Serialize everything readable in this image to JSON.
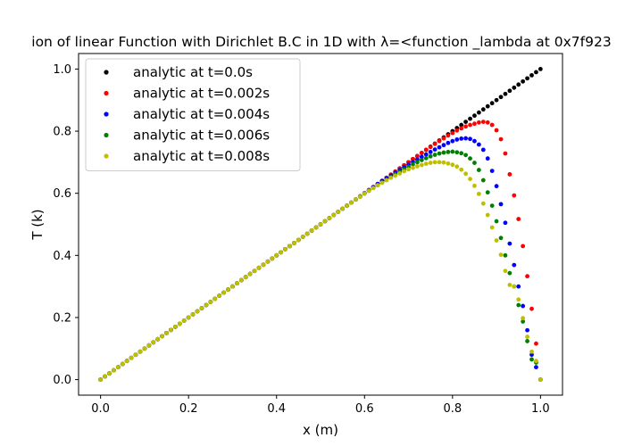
{
  "chart_data": {
    "type": "scatter",
    "title": "ion of linear Function with Dirichlet B.C in 1D with λ=<function _lambda at 0x7f923",
    "xlabel": "x (m)",
    "ylabel": "T (k)",
    "xlim": [
      -0.05,
      1.05
    ],
    "ylim": [
      -0.05,
      1.05
    ],
    "xticks": [
      "0.0",
      "0.2",
      "0.4",
      "0.6",
      "0.8",
      "1.0"
    ],
    "yticks": [
      "0.0",
      "0.2",
      "0.4",
      "0.6",
      "0.8",
      "1.0"
    ],
    "grid": false,
    "legend_position": "top-left",
    "series": [
      {
        "name": "analytic at t=0.0s",
        "color": "#000000",
        "x": [
          0.0,
          0.01,
          0.02,
          0.03,
          0.04,
          0.05,
          0.06,
          0.07,
          0.08,
          0.09,
          0.1,
          0.11,
          0.12,
          0.13,
          0.14,
          0.15,
          0.16,
          0.17,
          0.18,
          0.19,
          0.2,
          0.21,
          0.22,
          0.23,
          0.24,
          0.25,
          0.26,
          0.27,
          0.28,
          0.29,
          0.3,
          0.31,
          0.32,
          0.33,
          0.34,
          0.35,
          0.36,
          0.37,
          0.38,
          0.39,
          0.4,
          0.41,
          0.42,
          0.43,
          0.44,
          0.45,
          0.46,
          0.47,
          0.48,
          0.49,
          0.5,
          0.51,
          0.52,
          0.53,
          0.54,
          0.55,
          0.56,
          0.57,
          0.58,
          0.59,
          0.6,
          0.61,
          0.62,
          0.63,
          0.64,
          0.65,
          0.66,
          0.67,
          0.68,
          0.69,
          0.7,
          0.71,
          0.72,
          0.73,
          0.74,
          0.75,
          0.76,
          0.77,
          0.78,
          0.79,
          0.8,
          0.81,
          0.82,
          0.83,
          0.84,
          0.85,
          0.86,
          0.87,
          0.88,
          0.89,
          0.9,
          0.91,
          0.92,
          0.93,
          0.94,
          0.95,
          0.96,
          0.97,
          0.98,
          0.99,
          1.0
        ],
        "y": [
          0.0,
          0.01,
          0.02,
          0.03,
          0.04,
          0.05,
          0.06,
          0.07,
          0.08,
          0.09,
          0.1,
          0.11,
          0.12,
          0.13,
          0.14,
          0.15,
          0.16,
          0.17,
          0.18,
          0.19,
          0.2,
          0.21,
          0.22,
          0.23,
          0.24,
          0.25,
          0.26,
          0.27,
          0.28,
          0.29,
          0.3,
          0.31,
          0.32,
          0.33,
          0.34,
          0.35,
          0.36,
          0.37,
          0.38,
          0.39,
          0.4,
          0.41,
          0.42,
          0.43,
          0.44,
          0.45,
          0.46,
          0.47,
          0.48,
          0.49,
          0.5,
          0.51,
          0.52,
          0.53,
          0.54,
          0.55,
          0.56,
          0.57,
          0.58,
          0.59,
          0.6,
          0.61,
          0.62,
          0.63,
          0.64,
          0.65,
          0.66,
          0.67,
          0.68,
          0.69,
          0.7,
          0.71,
          0.72,
          0.73,
          0.74,
          0.75,
          0.76,
          0.77,
          0.78,
          0.79,
          0.8,
          0.81,
          0.82,
          0.83,
          0.84,
          0.85,
          0.86,
          0.87,
          0.88,
          0.89,
          0.9,
          0.91,
          0.92,
          0.93,
          0.94,
          0.95,
          0.96,
          0.97,
          0.98,
          0.99,
          1.0
        ]
      },
      {
        "name": "analytic at t=0.002s",
        "color": "#ff0000",
        "x": [
          0.0,
          0.01,
          0.02,
          0.03,
          0.04,
          0.05,
          0.06,
          0.07,
          0.08,
          0.09,
          0.1,
          0.11,
          0.12,
          0.13,
          0.14,
          0.15,
          0.16,
          0.17,
          0.18,
          0.19,
          0.2,
          0.21,
          0.22,
          0.23,
          0.24,
          0.25,
          0.26,
          0.27,
          0.28,
          0.29,
          0.3,
          0.31,
          0.32,
          0.33,
          0.34,
          0.35,
          0.36,
          0.37,
          0.38,
          0.39,
          0.4,
          0.41,
          0.42,
          0.43,
          0.44,
          0.45,
          0.46,
          0.47,
          0.48,
          0.49,
          0.5,
          0.51,
          0.52,
          0.53,
          0.54,
          0.55,
          0.56,
          0.57,
          0.58,
          0.59,
          0.6,
          0.61,
          0.62,
          0.63,
          0.64,
          0.65,
          0.66,
          0.67,
          0.68,
          0.69,
          0.7,
          0.71,
          0.72,
          0.73,
          0.74,
          0.75,
          0.76,
          0.77,
          0.78,
          0.79,
          0.8,
          0.81,
          0.82,
          0.83,
          0.84,
          0.85,
          0.86,
          0.87,
          0.88,
          0.89,
          0.9,
          0.91,
          0.92,
          0.93,
          0.94,
          0.95,
          0.96,
          0.97,
          0.98,
          0.99,
          1.0
        ],
        "y": [
          0.0,
          0.01,
          0.02,
          0.03,
          0.04,
          0.05,
          0.06,
          0.07,
          0.08,
          0.09,
          0.1,
          0.11,
          0.12,
          0.13,
          0.14,
          0.15,
          0.16,
          0.17,
          0.18,
          0.19,
          0.2,
          0.21,
          0.22,
          0.23,
          0.24,
          0.25,
          0.26,
          0.27,
          0.28,
          0.29,
          0.3,
          0.31,
          0.32,
          0.33,
          0.34,
          0.35,
          0.36,
          0.37,
          0.38,
          0.39,
          0.4,
          0.41,
          0.42,
          0.43,
          0.44,
          0.45,
          0.46,
          0.47,
          0.48,
          0.49,
          0.5,
          0.51,
          0.52,
          0.53,
          0.54,
          0.55,
          0.56,
          0.57,
          0.58,
          0.59,
          0.6,
          0.61,
          0.62,
          0.63,
          0.64,
          0.65,
          0.66,
          0.67,
          0.68,
          0.69,
          0.7,
          0.71,
          0.72,
          0.73,
          0.74,
          0.749,
          0.759,
          0.768,
          0.777,
          0.786,
          0.794,
          0.802,
          0.809,
          0.815,
          0.82,
          0.824,
          0.828,
          0.83,
          0.828,
          0.82,
          0.803,
          0.774,
          0.728,
          0.661,
          0.593,
          0.517,
          0.43,
          0.333,
          0.228,
          0.116,
          0.0
        ]
      },
      {
        "name": "analytic at t=0.004s",
        "color": "#0000ff",
        "x": [
          0.0,
          0.01,
          0.02,
          0.03,
          0.04,
          0.05,
          0.06,
          0.07,
          0.08,
          0.09,
          0.1,
          0.11,
          0.12,
          0.13,
          0.14,
          0.15,
          0.16,
          0.17,
          0.18,
          0.19,
          0.2,
          0.21,
          0.22,
          0.23,
          0.24,
          0.25,
          0.26,
          0.27,
          0.28,
          0.29,
          0.3,
          0.31,
          0.32,
          0.33,
          0.34,
          0.35,
          0.36,
          0.37,
          0.38,
          0.39,
          0.4,
          0.41,
          0.42,
          0.43,
          0.44,
          0.45,
          0.46,
          0.47,
          0.48,
          0.49,
          0.5,
          0.51,
          0.52,
          0.53,
          0.54,
          0.55,
          0.56,
          0.57,
          0.58,
          0.59,
          0.6,
          0.61,
          0.62,
          0.63,
          0.64,
          0.65,
          0.66,
          0.67,
          0.68,
          0.69,
          0.7,
          0.71,
          0.72,
          0.73,
          0.74,
          0.75,
          0.76,
          0.77,
          0.78,
          0.79,
          0.8,
          0.81,
          0.82,
          0.83,
          0.84,
          0.85,
          0.86,
          0.87,
          0.88,
          0.89,
          0.9,
          0.91,
          0.92,
          0.93,
          0.94,
          0.95,
          0.96,
          0.97,
          0.98,
          0.99,
          1.0
        ],
        "y": [
          0.0,
          0.01,
          0.02,
          0.03,
          0.04,
          0.05,
          0.06,
          0.07,
          0.08,
          0.09,
          0.1,
          0.11,
          0.12,
          0.13,
          0.14,
          0.15,
          0.16,
          0.17,
          0.18,
          0.19,
          0.2,
          0.21,
          0.22,
          0.23,
          0.24,
          0.25,
          0.26,
          0.27,
          0.28,
          0.29,
          0.3,
          0.31,
          0.32,
          0.33,
          0.34,
          0.35,
          0.36,
          0.37,
          0.38,
          0.39,
          0.4,
          0.41,
          0.42,
          0.43,
          0.44,
          0.45,
          0.46,
          0.47,
          0.48,
          0.49,
          0.5,
          0.51,
          0.52,
          0.53,
          0.54,
          0.55,
          0.56,
          0.57,
          0.58,
          0.59,
          0.6,
          0.61,
          0.62,
          0.63,
          0.64,
          0.648,
          0.657,
          0.666,
          0.675,
          0.684,
          0.692,
          0.701,
          0.709,
          0.717,
          0.725,
          0.733,
          0.741,
          0.748,
          0.755,
          0.762,
          0.768,
          0.773,
          0.776,
          0.777,
          0.775,
          0.768,
          0.757,
          0.74,
          0.712,
          0.672,
          0.623,
          0.565,
          0.505,
          0.438,
          0.369,
          0.3,
          0.237,
          0.159,
          0.08,
          0.04,
          0.0
        ]
      },
      {
        "name": "analytic at t=0.006s",
        "color": "#008000",
        "x": [
          0.0,
          0.01,
          0.02,
          0.03,
          0.04,
          0.05,
          0.06,
          0.07,
          0.08,
          0.09,
          0.1,
          0.11,
          0.12,
          0.13,
          0.14,
          0.15,
          0.16,
          0.17,
          0.18,
          0.19,
          0.2,
          0.21,
          0.22,
          0.23,
          0.24,
          0.25,
          0.26,
          0.27,
          0.28,
          0.29,
          0.3,
          0.31,
          0.32,
          0.33,
          0.34,
          0.35,
          0.36,
          0.37,
          0.38,
          0.39,
          0.4,
          0.41,
          0.42,
          0.43,
          0.44,
          0.45,
          0.46,
          0.47,
          0.48,
          0.49,
          0.5,
          0.51,
          0.52,
          0.53,
          0.54,
          0.55,
          0.56,
          0.57,
          0.58,
          0.59,
          0.6,
          0.61,
          0.62,
          0.63,
          0.64,
          0.65,
          0.66,
          0.67,
          0.68,
          0.69,
          0.7,
          0.71,
          0.72,
          0.73,
          0.74,
          0.75,
          0.76,
          0.77,
          0.78,
          0.79,
          0.8,
          0.81,
          0.82,
          0.83,
          0.84,
          0.85,
          0.86,
          0.87,
          0.88,
          0.89,
          0.9,
          0.91,
          0.92,
          0.93,
          0.94,
          0.95,
          0.96,
          0.97,
          0.98,
          0.99,
          1.0
        ],
        "y": [
          0.0,
          0.01,
          0.02,
          0.03,
          0.04,
          0.05,
          0.06,
          0.07,
          0.08,
          0.09,
          0.1,
          0.11,
          0.12,
          0.13,
          0.14,
          0.15,
          0.16,
          0.17,
          0.18,
          0.19,
          0.2,
          0.21,
          0.22,
          0.23,
          0.24,
          0.25,
          0.26,
          0.27,
          0.28,
          0.29,
          0.3,
          0.31,
          0.32,
          0.33,
          0.34,
          0.35,
          0.36,
          0.37,
          0.38,
          0.39,
          0.4,
          0.41,
          0.42,
          0.43,
          0.44,
          0.45,
          0.46,
          0.47,
          0.48,
          0.49,
          0.5,
          0.51,
          0.52,
          0.53,
          0.54,
          0.55,
          0.56,
          0.57,
          0.58,
          0.589,
          0.599,
          0.608,
          0.617,
          0.626,
          0.635,
          0.643,
          0.652,
          0.661,
          0.669,
          0.677,
          0.685,
          0.693,
          0.7,
          0.707,
          0.713,
          0.719,
          0.724,
          0.728,
          0.731,
          0.733,
          0.734,
          0.732,
          0.729,
          0.723,
          0.712,
          0.698,
          0.675,
          0.642,
          0.603,
          0.56,
          0.51,
          0.456,
          0.4,
          0.343,
          0.3,
          0.24,
          0.187,
          0.124,
          0.065,
          0.055,
          0.0
        ]
      },
      {
        "name": "analytic at t=0.008s",
        "color": "#bfbf00",
        "x": [
          0.0,
          0.01,
          0.02,
          0.03,
          0.04,
          0.05,
          0.06,
          0.07,
          0.08,
          0.09,
          0.1,
          0.11,
          0.12,
          0.13,
          0.14,
          0.15,
          0.16,
          0.17,
          0.18,
          0.19,
          0.2,
          0.21,
          0.22,
          0.23,
          0.24,
          0.25,
          0.26,
          0.27,
          0.28,
          0.29,
          0.3,
          0.31,
          0.32,
          0.33,
          0.34,
          0.35,
          0.36,
          0.37,
          0.38,
          0.39,
          0.4,
          0.41,
          0.42,
          0.43,
          0.44,
          0.45,
          0.46,
          0.47,
          0.48,
          0.49,
          0.5,
          0.51,
          0.52,
          0.53,
          0.54,
          0.55,
          0.56,
          0.57,
          0.58,
          0.59,
          0.6,
          0.61,
          0.62,
          0.63,
          0.64,
          0.65,
          0.66,
          0.67,
          0.68,
          0.69,
          0.7,
          0.71,
          0.72,
          0.73,
          0.74,
          0.75,
          0.76,
          0.77,
          0.78,
          0.79,
          0.8,
          0.81,
          0.82,
          0.83,
          0.84,
          0.85,
          0.86,
          0.87,
          0.88,
          0.89,
          0.9,
          0.91,
          0.92,
          0.93,
          0.94,
          0.95,
          0.96,
          0.97,
          0.98,
          0.99,
          1.0
        ],
        "y": [
          0.0,
          0.01,
          0.02,
          0.03,
          0.04,
          0.05,
          0.06,
          0.07,
          0.08,
          0.09,
          0.1,
          0.11,
          0.12,
          0.13,
          0.14,
          0.15,
          0.16,
          0.17,
          0.18,
          0.19,
          0.2,
          0.21,
          0.22,
          0.23,
          0.24,
          0.25,
          0.26,
          0.27,
          0.28,
          0.29,
          0.3,
          0.31,
          0.32,
          0.33,
          0.34,
          0.35,
          0.36,
          0.37,
          0.38,
          0.39,
          0.4,
          0.41,
          0.42,
          0.43,
          0.44,
          0.45,
          0.46,
          0.47,
          0.48,
          0.49,
          0.5,
          0.51,
          0.52,
          0.53,
          0.54,
          0.55,
          0.56,
          0.57,
          0.58,
          0.589,
          0.599,
          0.608,
          0.617,
          0.626,
          0.634,
          0.642,
          0.65,
          0.657,
          0.664,
          0.671,
          0.677,
          0.682,
          0.687,
          0.691,
          0.695,
          0.698,
          0.7,
          0.7,
          0.699,
          0.696,
          0.692,
          0.686,
          0.676,
          0.663,
          0.646,
          0.624,
          0.598,
          0.567,
          0.53,
          0.49,
          0.448,
          0.402,
          0.35,
          0.305,
          0.3,
          0.258,
          0.198,
          0.138,
          0.09,
          0.06,
          0.0
        ]
      }
    ]
  }
}
